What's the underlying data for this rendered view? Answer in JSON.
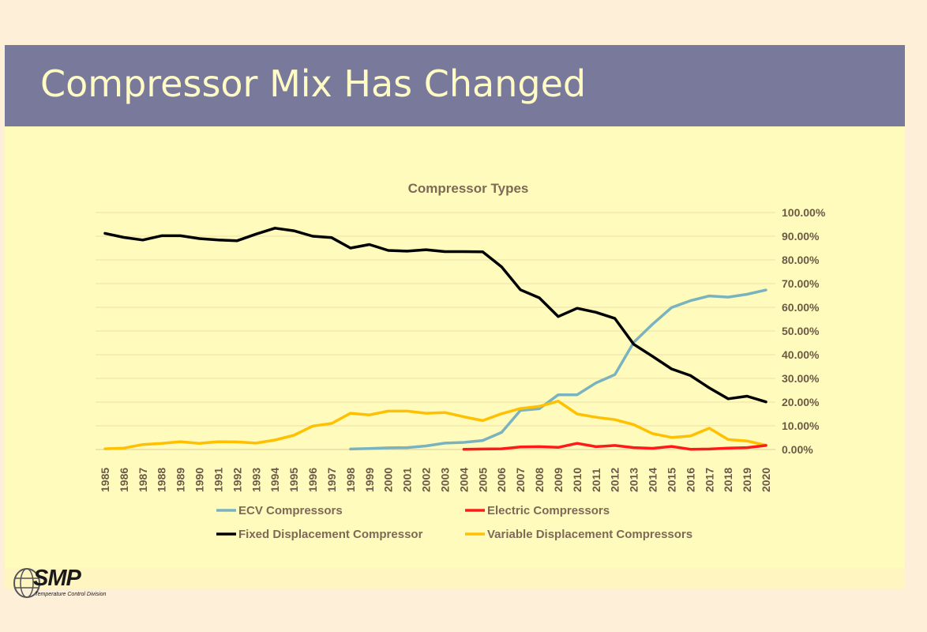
{
  "slide": {
    "title": "Compressor Mix Has Changed"
  },
  "logo": {
    "name": "SMP",
    "tagline": "Temperature Control Division"
  },
  "chart_data": {
    "type": "line",
    "title": "Compressor Types",
    "xlabel": "",
    "ylabel": "",
    "ylim": [
      0,
      100
    ],
    "y_ticks": [
      "0.00%",
      "10.00%",
      "20.00%",
      "30.00%",
      "40.00%",
      "50.00%",
      "60.00%",
      "70.00%",
      "80.00%",
      "90.00%",
      "100.00%"
    ],
    "grid": true,
    "legend_position": "bottom",
    "categories": [
      "1985",
      "1986",
      "1987",
      "1988",
      "1989",
      "1990",
      "1991",
      "1992",
      "1993",
      "1994",
      "1995",
      "1996",
      "1997",
      "1998",
      "1999",
      "2000",
      "2001",
      "2002",
      "2003",
      "2004",
      "2005",
      "2006",
      "2007",
      "2008",
      "2009",
      "2010",
      "2011",
      "2012",
      "2013",
      "2014",
      "2015",
      "2016",
      "2017",
      "2018",
      "2019",
      "2020"
    ],
    "series": [
      {
        "name": "ECV Compressors",
        "color": "#7ab3c0",
        "values": [
          null,
          null,
          null,
          null,
          null,
          null,
          null,
          null,
          null,
          null,
          null,
          null,
          null,
          0.2,
          0.4,
          0.7,
          0.8,
          1.5,
          2.7,
          3.0,
          3.8,
          7.2,
          16.5,
          17.2,
          23.1,
          23.1,
          28.1,
          31.6,
          45.2,
          52.9,
          59.9,
          62.8,
          64.8,
          64.3,
          65.5,
          67.3
        ]
      },
      {
        "name": "Electric Compressors",
        "color": "#ff1a1a",
        "values": [
          null,
          null,
          null,
          null,
          null,
          null,
          null,
          null,
          null,
          null,
          null,
          null,
          null,
          null,
          null,
          null,
          null,
          null,
          null,
          0.1,
          0.2,
          0.3,
          1.1,
          1.2,
          0.9,
          2.6,
          1.2,
          1.7,
          0.8,
          0.5,
          1.3,
          0.1,
          0.2,
          0.6,
          0.8,
          1.7
        ]
      },
      {
        "name": "Fixed Displacement Compressor",
        "color": "#000000",
        "values": [
          91.2,
          89.5,
          88.4,
          90.2,
          90.2,
          89.0,
          88.4,
          88.1,
          90.9,
          93.4,
          92.3,
          90.0,
          89.4,
          85.0,
          86.5,
          84.0,
          83.7,
          84.3,
          83.5,
          83.5,
          83.4,
          77.1,
          67.4,
          64.0,
          56.1,
          59.6,
          57.9,
          55.3,
          44.4,
          39.3,
          34.0,
          31.2,
          26.0,
          21.4,
          22.5,
          20.1
        ]
      },
      {
        "name": "Variable Displacement Compressors",
        "color": "#ffc000",
        "values": [
          0.3,
          0.6,
          2.1,
          2.6,
          3.3,
          2.6,
          3.3,
          3.2,
          2.7,
          4.0,
          6.0,
          9.9,
          11.0,
          15.3,
          14.6,
          16.2,
          16.2,
          15.3,
          15.6,
          13.8,
          12.2,
          15.1,
          17.3,
          18.2,
          20.4,
          15.0,
          13.6,
          12.6,
          10.5,
          6.7,
          5.1,
          5.7,
          9.0,
          4.2,
          3.6,
          1.8
        ]
      }
    ]
  }
}
